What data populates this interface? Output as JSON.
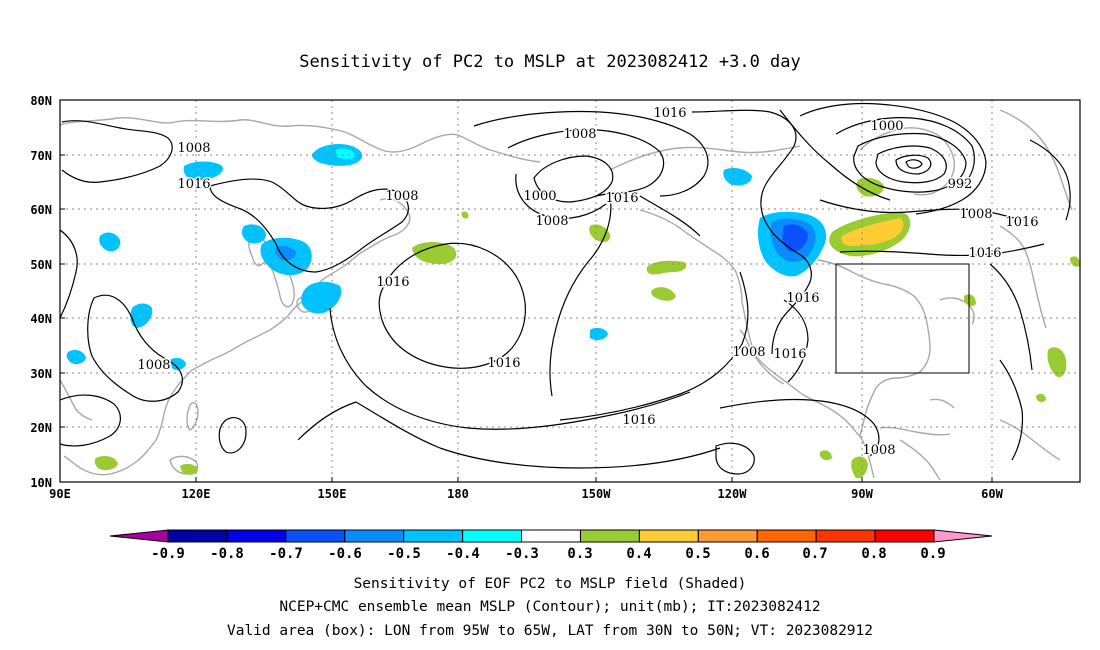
{
  "title": "Sensitivity of PC2 to MSLP at 2023082412 +3.0 day",
  "map": {
    "lon_labels": [
      "90E",
      "120E",
      "150E",
      "180",
      "150W",
      "120W",
      "90W",
      "60W"
    ],
    "lat_labels": [
      "80N",
      "70N",
      "60N",
      "50N",
      "40N",
      "30N",
      "20N",
      "10N"
    ],
    "lon_range": [
      90,
      330
    ],
    "lat_range": [
      10,
      80
    ],
    "grid": true,
    "contour_labels": [
      "1008",
      "1016",
      "1016",
      "1008",
      "1000",
      "1008",
      "1016",
      "1008",
      "1016",
      "1000",
      "992",
      "1008",
      "1016",
      "1016",
      "1016",
      "1016",
      "1016",
      "1008",
      "1016",
      "1008",
      "1008"
    ],
    "valid_area_box": {
      "lon": [
        -95,
        -65
      ],
      "lat": [
        30,
        50
      ]
    },
    "colors": {
      "coast": "#a8a8a8",
      "contour": "#000000",
      "box": "#000000"
    }
  },
  "colorbar": {
    "colors": [
      "#a8009c",
      "#0000a8",
      "#0000e6",
      "#0a52ff",
      "#0a8cff",
      "#00c2ff",
      "#00ffff",
      "#ffffff",
      "#99cc33",
      "#ffcc33",
      "#ff9933",
      "#ff6600",
      "#ff3300",
      "#ff0000",
      "#ff99cc"
    ],
    "labels": [
      "-0.9",
      "-0.8",
      "-0.7",
      "-0.6",
      "-0.5",
      "-0.4",
      "-0.3",
      "0.3",
      "0.4",
      "0.5",
      "0.6",
      "0.7",
      "0.8",
      "0.9"
    ]
  },
  "caption": {
    "line1": "Sensitivity of EOF PC2 to MSLP field (Shaded)",
    "line2": "NCEP+CMC ensemble mean MSLP (Contour); unit(mb); IT:2023082412",
    "line3": "Valid area (box): LON from 95W to 65W, LAT from 30N to 50N; VT: 2023082912"
  }
}
